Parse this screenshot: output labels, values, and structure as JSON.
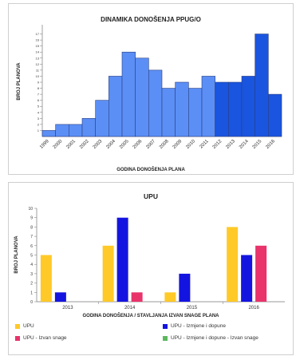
{
  "chart_data": [
    {
      "type": "bar",
      "title": "DINAMIKA DONOŠENJA PPUG/O",
      "xlabel": "GODINA DONOŠENJA PLANA",
      "ylabel": "BROJ PLANOVA",
      "categories": [
        "1999",
        "2000",
        "2001",
        "2002",
        "2003",
        "2004",
        "2005",
        "2006",
        "2007",
        "2008",
        "2009",
        "2010",
        "2011",
        "2012",
        "2013",
        "2014",
        "2015",
        "2016"
      ],
      "values": [
        1,
        2,
        2,
        3,
        6,
        10,
        14,
        13,
        11,
        8,
        9,
        8,
        10,
        9,
        9,
        10,
        17,
        7
      ],
      "highlight_from_index": 13,
      "ylim": [
        0,
        18
      ],
      "yticks": [
        1,
        2,
        3,
        4,
        5,
        6,
        7,
        8,
        9,
        10,
        11,
        12,
        13,
        14,
        15,
        16,
        17
      ],
      "colors": {
        "main": "#5b8ff5",
        "highlight": "#1a55e0",
        "edge": "#2a3f80"
      },
      "grid": false
    },
    {
      "type": "bar",
      "title": "UPU",
      "xlabel": "GODINA DONOŠENJA / STAVLJANJA IZVAN SNAGE PLANA",
      "ylabel": "BROJ PLANOVA",
      "categories": [
        "2013",
        "2014",
        "2015",
        "2016"
      ],
      "ylim": [
        0,
        10
      ],
      "yticks": [
        0,
        1,
        2,
        3,
        4,
        5,
        6,
        7,
        8,
        9,
        10
      ],
      "series": [
        {
          "name": "UPU",
          "values": [
            5,
            6,
            1,
            8
          ],
          "color": "#ffc928"
        },
        {
          "name": "UPU - Izmjene i dopune",
          "values": [
            1,
            9,
            3,
            5
          ],
          "color": "#1414e0"
        },
        {
          "name": "UPU - Izvan snage",
          "values": [
            0,
            1,
            0,
            6
          ],
          "color": "#e8336b"
        },
        {
          "name": "UPU - Izmjene i dopune - Izvan snage",
          "values": [
            0,
            0,
            0,
            0
          ],
          "color": "#5cb85c"
        }
      ],
      "legend_position": "bottom",
      "grid": false
    }
  ]
}
